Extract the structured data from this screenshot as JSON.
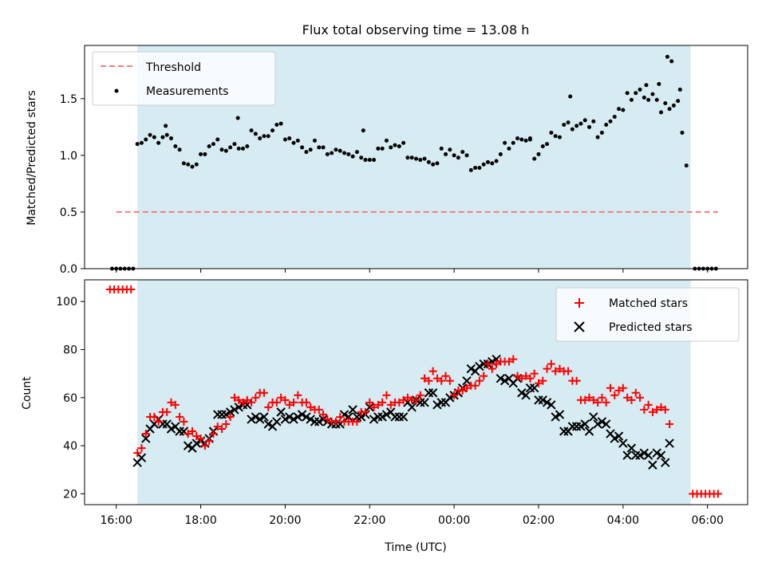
{
  "chart_data": [
    {
      "type": "scatter",
      "title": "Flux total observing time = 13.08 h",
      "ylabel": "Matched/Predicted stars",
      "xlabel": "",
      "xlim": [
        -0.75,
        14.95
      ],
      "ylim": [
        0,
        1.97
      ],
      "yticks": [
        0.0,
        0.5,
        1.0,
        1.5
      ],
      "ytick_labels": [
        "0.0",
        "0.5",
        "1.0",
        "1.5"
      ],
      "xticks": [
        0,
        2,
        4,
        6,
        8,
        10,
        12,
        14
      ],
      "grid": false,
      "legend_position": "top-left",
      "colors": {
        "measurements": "#000000",
        "threshold": "#f08080",
        "shade": "#add8e6"
      },
      "shaded_span": {
        "x0": 0.5,
        "x1": 13.6
      },
      "series": [
        {
          "name": "Threshold",
          "kind": "line",
          "x": [
            0,
            14.25
          ],
          "y": [
            0.5,
            0.5
          ]
        },
        {
          "name": "Measurements",
          "kind": "points",
          "x": [],
          "y": []
        }
      ]
    },
    {
      "type": "scatter",
      "title": "",
      "ylabel": "Count",
      "xlabel": "Time (UTC)",
      "xlim": [
        -0.75,
        14.95
      ],
      "ylim": [
        15.5,
        109
      ],
      "yticks": [
        20,
        40,
        60,
        80,
        100
      ],
      "ytick_labels": [
        "20",
        "40",
        "60",
        "80",
        "100"
      ],
      "xticks": [
        0,
        2,
        4,
        6,
        8,
        10,
        12,
        14
      ],
      "xtick_labels": [
        "16:00",
        "18:00",
        "20:00",
        "22:00",
        "00:00",
        "02:00",
        "04:00",
        "06:00"
      ],
      "grid": false,
      "legend_position": "top-right",
      "colors": {
        "matched": "#ff0000",
        "predicted": "#000000",
        "shade": "#add8e6"
      },
      "shaded_span": {
        "x0": 0.5,
        "x1": 13.6
      },
      "series": [
        {
          "name": "Matched stars",
          "marker": "+",
          "x": [],
          "y": []
        },
        {
          "name": "Predicted stars",
          "marker": "x",
          "x": [],
          "y": []
        }
      ]
    }
  ]
}
